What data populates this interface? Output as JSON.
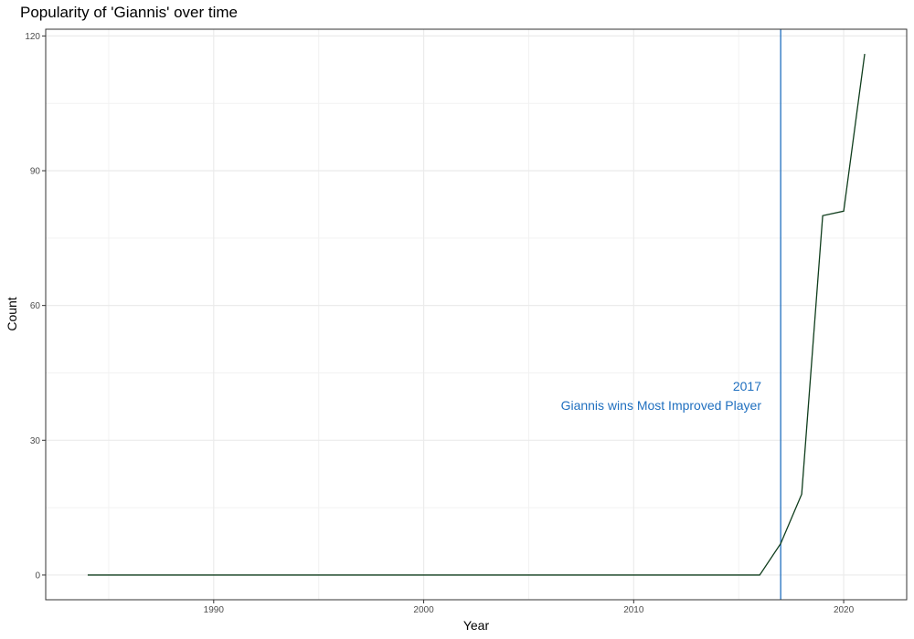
{
  "chart_data": {
    "type": "line",
    "title": "Popularity of 'Giannis' over time",
    "xlabel": "Year",
    "ylabel": "Count",
    "xlim": [
      1982,
      2023
    ],
    "ylim": [
      -5.5,
      121.5
    ],
    "xticks": [
      1990,
      2000,
      2010,
      2020
    ],
    "yticks": [
      0,
      30,
      60,
      90,
      120
    ],
    "grid": true,
    "line_color": "#0f3d1c",
    "series": [
      {
        "x": [
          1984,
          1985,
          1986,
          1987,
          1988,
          1989,
          1990,
          1991,
          1992,
          1993,
          1994,
          1995,
          1996,
          1997,
          1998,
          1999,
          2000,
          2001,
          2002,
          2003,
          2004,
          2005,
          2006,
          2007,
          2008,
          2009,
          2010,
          2011,
          2012,
          2013,
          2014,
          2015,
          2016,
          2017,
          2018,
          2019,
          2020,
          2021
        ],
        "values": [
          0,
          0,
          0,
          0,
          0,
          0,
          0,
          0,
          0,
          0,
          0,
          0,
          0,
          0,
          0,
          0,
          0,
          0,
          0,
          0,
          0,
          0,
          0,
          0,
          0,
          0,
          0,
          0,
          0,
          0,
          0,
          0,
          0,
          7,
          18,
          80,
          81,
          116
        ]
      }
    ],
    "vline": {
      "x": 2017,
      "color": "#1f6fbf",
      "label_line1": "2017",
      "label_line2": "Giannis wins Most Improved Player"
    }
  }
}
